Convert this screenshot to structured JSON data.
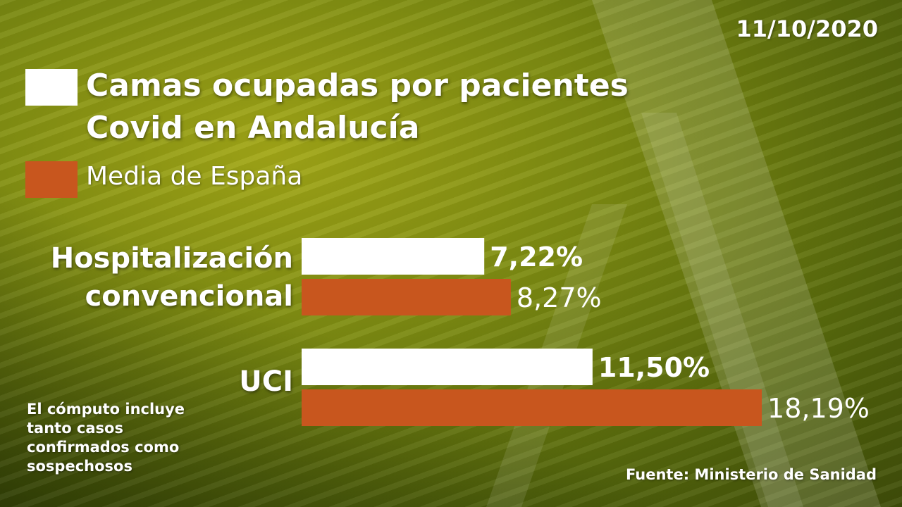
{
  "date": "11/10/2020",
  "legend": {
    "primary_label_line1": "Camas ocupadas por pacientes",
    "primary_label_line2": "Covid en Andalucía",
    "secondary_label": "Media de España"
  },
  "note": "El cómputo incluye tanto casos confirmados como sospechosos",
  "source": "Fuente: Ministerio de Sanidad",
  "colors": {
    "andalucia": "#ffffff",
    "espana": "#c8561e",
    "background": "#7b8a12"
  },
  "chart_data": {
    "type": "bar",
    "orientation": "horizontal",
    "categories": [
      "Hospitalización convencional",
      "UCI"
    ],
    "category_lines": [
      [
        "Hospitalización",
        "convencional"
      ],
      [
        "UCI"
      ]
    ],
    "series": [
      {
        "name": "Camas ocupadas por pacientes Covid en Andalucía",
        "values": [
          7.22,
          11.5
        ],
        "value_labels": [
          "7,22%",
          "11,50%"
        ]
      },
      {
        "name": "Media de España",
        "values": [
          8.27,
          18.19
        ],
        "value_labels": [
          "8,27%",
          "18,19%"
        ]
      }
    ],
    "unit": "%",
    "legend": "top-left",
    "grid": false
  }
}
